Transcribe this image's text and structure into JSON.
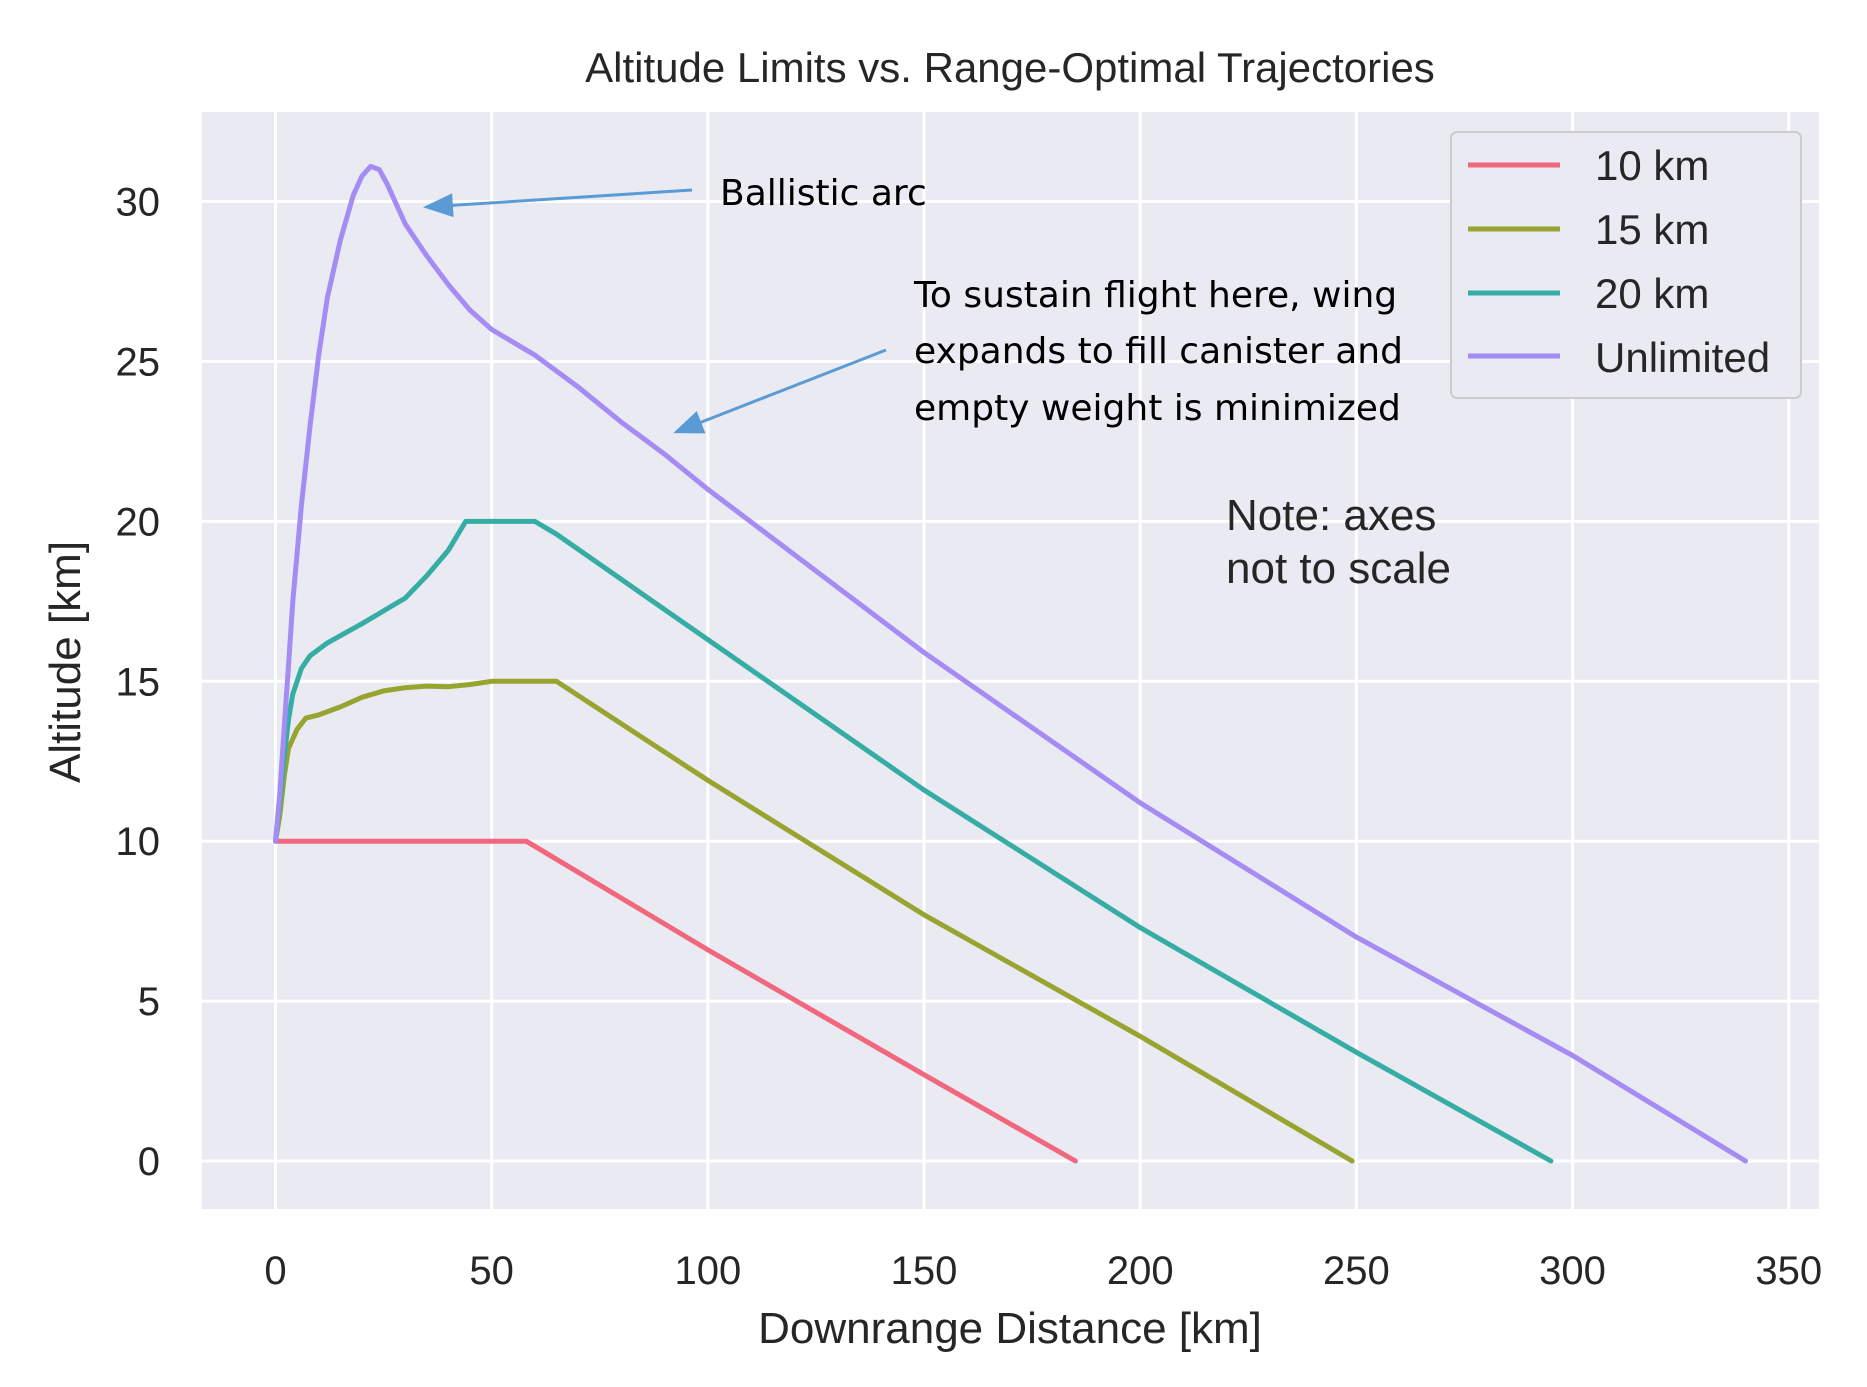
{
  "chart_data": {
    "type": "line",
    "title": "Altitude Limits vs. Range-Optimal Trajectories",
    "xlabel": "Downrange Distance [km]",
    "ylabel": "Altitude [km]",
    "xlim": [
      -17,
      357
    ],
    "ylim": [
      -1.5,
      32.8
    ],
    "x_ticks": [
      0,
      50,
      100,
      150,
      200,
      250,
      300,
      350
    ],
    "y_ticks": [
      0,
      5,
      10,
      15,
      20,
      25,
      30
    ],
    "grid": true,
    "background": "#eaeaf2",
    "legend_position": "top-right",
    "series": [
      {
        "name": "10 km",
        "color": "#f0677e",
        "points": [
          [
            0,
            10
          ],
          [
            10,
            10
          ],
          [
            20,
            10
          ],
          [
            30,
            10
          ],
          [
            40,
            10
          ],
          [
            50,
            10
          ],
          [
            58,
            10
          ],
          [
            100,
            6.6
          ],
          [
            150,
            2.7
          ],
          [
            185,
            0
          ]
        ]
      },
      {
        "name": "15 km",
        "color": "#97a430",
        "points": [
          [
            0,
            10
          ],
          [
            1,
            10.8
          ],
          [
            2,
            12
          ],
          [
            3,
            12.9
          ],
          [
            5,
            13.5
          ],
          [
            7,
            13.85
          ],
          [
            10,
            13.95
          ],
          [
            15,
            14.2
          ],
          [
            20,
            14.5
          ],
          [
            25,
            14.7
          ],
          [
            30,
            14.8
          ],
          [
            35,
            14.85
          ],
          [
            40,
            14.83
          ],
          [
            45,
            14.9
          ],
          [
            50,
            15
          ],
          [
            60,
            15
          ],
          [
            65,
            15
          ],
          [
            100,
            11.9
          ],
          [
            150,
            7.7
          ],
          [
            200,
            3.9
          ],
          [
            249,
            0
          ]
        ]
      },
      {
        "name": "20 km",
        "color": "#36ada4",
        "points": [
          [
            0,
            10
          ],
          [
            1,
            11.2
          ],
          [
            2,
            12.6
          ],
          [
            3,
            13.8
          ],
          [
            4,
            14.6
          ],
          [
            6,
            15.4
          ],
          [
            8,
            15.8
          ],
          [
            12,
            16.2
          ],
          [
            20,
            16.8
          ],
          [
            25,
            17.2
          ],
          [
            30,
            17.6
          ],
          [
            35,
            18.3
          ],
          [
            40,
            19.1
          ],
          [
            44,
            20
          ],
          [
            50,
            20
          ],
          [
            60,
            20
          ],
          [
            65,
            19.6
          ],
          [
            100,
            16.3
          ],
          [
            150,
            11.6
          ],
          [
            200,
            7.3
          ],
          [
            250,
            3.4
          ],
          [
            295,
            0
          ]
        ]
      },
      {
        "name": "Unlimited",
        "color": "#a48cf4",
        "points": [
          [
            0,
            10
          ],
          [
            1,
            11.5
          ],
          [
            2,
            13.5
          ],
          [
            3,
            15.5
          ],
          [
            4,
            17.5
          ],
          [
            6,
            20.5
          ],
          [
            8,
            23
          ],
          [
            10,
            25.2
          ],
          [
            12,
            27
          ],
          [
            15,
            28.8
          ],
          [
            18,
            30.2
          ],
          [
            20,
            30.8
          ],
          [
            22,
            31.1
          ],
          [
            24,
            31
          ],
          [
            26,
            30.5
          ],
          [
            30,
            29.3
          ],
          [
            35,
            28.3
          ],
          [
            40,
            27.4
          ],
          [
            45,
            26.6
          ],
          [
            50,
            26
          ],
          [
            55,
            25.6
          ],
          [
            60,
            25.2
          ],
          [
            70,
            24.2
          ],
          [
            80,
            23.1
          ],
          [
            90,
            22.1
          ],
          [
            100,
            21
          ],
          [
            150,
            15.9
          ],
          [
            200,
            11.2
          ],
          [
            250,
            7
          ],
          [
            300,
            3.3
          ],
          [
            340,
            0
          ]
        ]
      }
    ],
    "annotations": {
      "ballistic": "Ballistic arc",
      "wing_lines": [
        "To sustain flight here, wing",
        "expands to fill canister and",
        "empty weight is minimized"
      ],
      "note_lines": [
        "Note: axes",
        "not to scale"
      ],
      "arrow_color": "#5b9bd5"
    }
  }
}
